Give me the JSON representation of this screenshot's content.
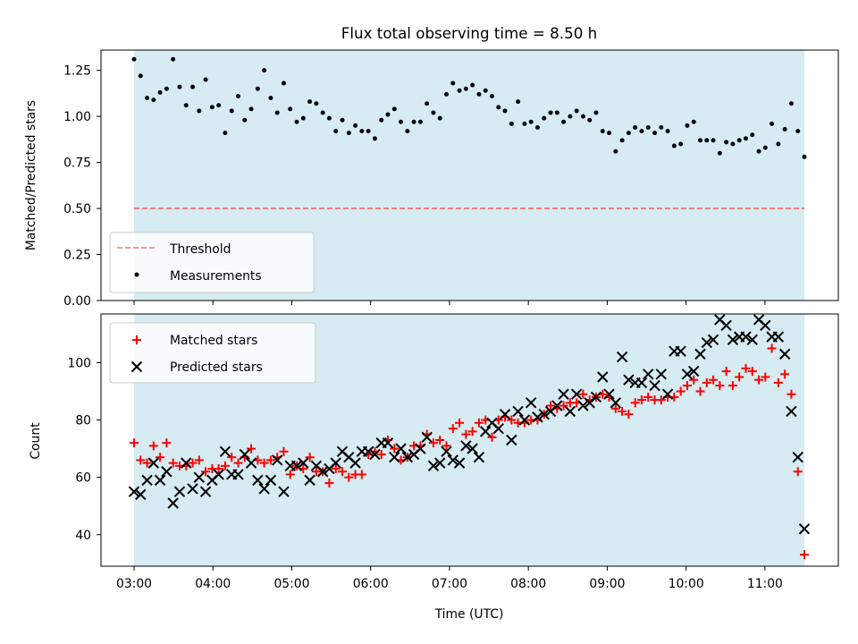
{
  "title": "Flux total observing time = 8.50 h",
  "colors": {
    "shade": "#add8e6",
    "threshold": "#ff0000",
    "measurements": "#000000",
    "matched": "#ff0000",
    "predicted": "#000000"
  },
  "chart_data": [
    {
      "type": "scatter",
      "ylabel": "Matched/Predicted stars",
      "ylim": [
        0.0,
        1.36
      ],
      "yticks": [
        "0.00",
        "0.25",
        "0.50",
        "0.75",
        "1.00",
        "1.25"
      ],
      "shaded_x_range": [
        0,
        510
      ],
      "threshold": 0.5,
      "legend": {
        "placement": "lower-left",
        "entries": [
          "Threshold",
          "Measurements"
        ]
      },
      "series": [
        {
          "name": "Measurements",
          "marker": "dot",
          "values": [
            1.31,
            1.22,
            1.1,
            1.09,
            1.13,
            1.15,
            1.31,
            1.16,
            1.06,
            1.16,
            1.03,
            1.2,
            1.05,
            1.06,
            0.91,
            1.03,
            1.11,
            0.98,
            1.04,
            1.15,
            1.25,
            1.1,
            1.02,
            1.18,
            1.04,
            0.97,
            0.99,
            1.08,
            1.07,
            1.02,
            0.99,
            0.92,
            0.98,
            0.91,
            0.95,
            0.92,
            0.92,
            0.88,
            0.98,
            1.01,
            1.04,
            0.97,
            0.92,
            0.97,
            0.97,
            1.07,
            1.02,
            0.99,
            1.12,
            1.18,
            1.14,
            1.15,
            1.17,
            1.12,
            1.14,
            1.11,
            1.05,
            1.03,
            0.96,
            1.08,
            0.96,
            0.97,
            0.94,
            0.99,
            1.02,
            1.02,
            0.97,
            1.0,
            1.03,
            1.0,
            0.98,
            1.02,
            0.92,
            0.91,
            0.81,
            0.87,
            0.91,
            0.94,
            0.92,
            0.94,
            0.91,
            0.94,
            0.92,
            0.84,
            0.85,
            0.95,
            0.97,
            0.87,
            0.87,
            0.87,
            0.8,
            0.86,
            0.85,
            0.87,
            0.88,
            0.9,
            0.81,
            0.83,
            0.96,
            0.85,
            0.93,
            1.07,
            0.92,
            0.78
          ]
        }
      ]
    },
    {
      "type": "scatter",
      "xlabel": "Time (UTC)",
      "ylabel": "Count",
      "ylim": [
        29,
        117
      ],
      "yticks": [
        "40",
        "60",
        "80",
        "100"
      ],
      "xticks": [
        "03:00",
        "04:00",
        "05:00",
        "06:00",
        "07:00",
        "08:00",
        "09:00",
        "10:00",
        "11:00"
      ],
      "shaded_x_range": [
        0,
        510
      ],
      "legend": {
        "placement": "top-left",
        "entries": [
          "Matched stars",
          "Predicted stars"
        ]
      },
      "series": [
        {
          "name": "Matched stars",
          "marker": "plus",
          "values": [
            72,
            66,
            65,
            71,
            67,
            72,
            65,
            64,
            64,
            65,
            66,
            62,
            63,
            63,
            64,
            67,
            65,
            67,
            70,
            66,
            65,
            66,
            67,
            69,
            61,
            64,
            63,
            67,
            62,
            62,
            58,
            63,
            62,
            60,
            61,
            61,
            68,
            69,
            68,
            73,
            70,
            66,
            67,
            71,
            71,
            75,
            72,
            73,
            71,
            77,
            79,
            75,
            76,
            79,
            80,
            74,
            80,
            81,
            80,
            79,
            79,
            80,
            80,
            82,
            85,
            84,
            85,
            86,
            86,
            89,
            87,
            88,
            89,
            88,
            84,
            83,
            82,
            86,
            87,
            88,
            87,
            87,
            88,
            88,
            90,
            92,
            94,
            90,
            93,
            94,
            92,
            97,
            92,
            95,
            98,
            97,
            94,
            95,
            105,
            93,
            96,
            89,
            62,
            33
          ]
        },
        {
          "name": "Predicted stars",
          "marker": "x",
          "values": [
            55,
            54,
            59,
            65,
            59,
            62,
            51,
            55,
            65,
            56,
            60,
            55,
            59,
            61,
            69,
            61,
            61,
            68,
            65,
            59,
            56,
            59,
            66,
            55,
            64,
            64,
            65,
            59,
            64,
            62,
            63,
            65,
            69,
            67,
            65,
            69,
            69,
            68,
            72,
            72,
            67,
            70,
            67,
            68,
            70,
            74,
            64,
            65,
            69,
            66,
            65,
            71,
            70,
            67,
            76,
            79,
            77,
            82,
            73,
            83,
            80,
            86,
            81,
            82,
            83,
            85,
            89,
            83,
            89,
            85,
            86,
            88,
            95,
            89,
            86,
            102,
            94,
            93,
            93,
            96,
            92,
            96,
            89,
            104,
            104,
            96,
            97,
            103,
            107,
            108,
            115,
            113,
            108,
            109,
            109,
            108,
            115,
            113,
            109,
            109,
            103,
            83,
            67,
            42
          ]
        }
      ]
    }
  ]
}
